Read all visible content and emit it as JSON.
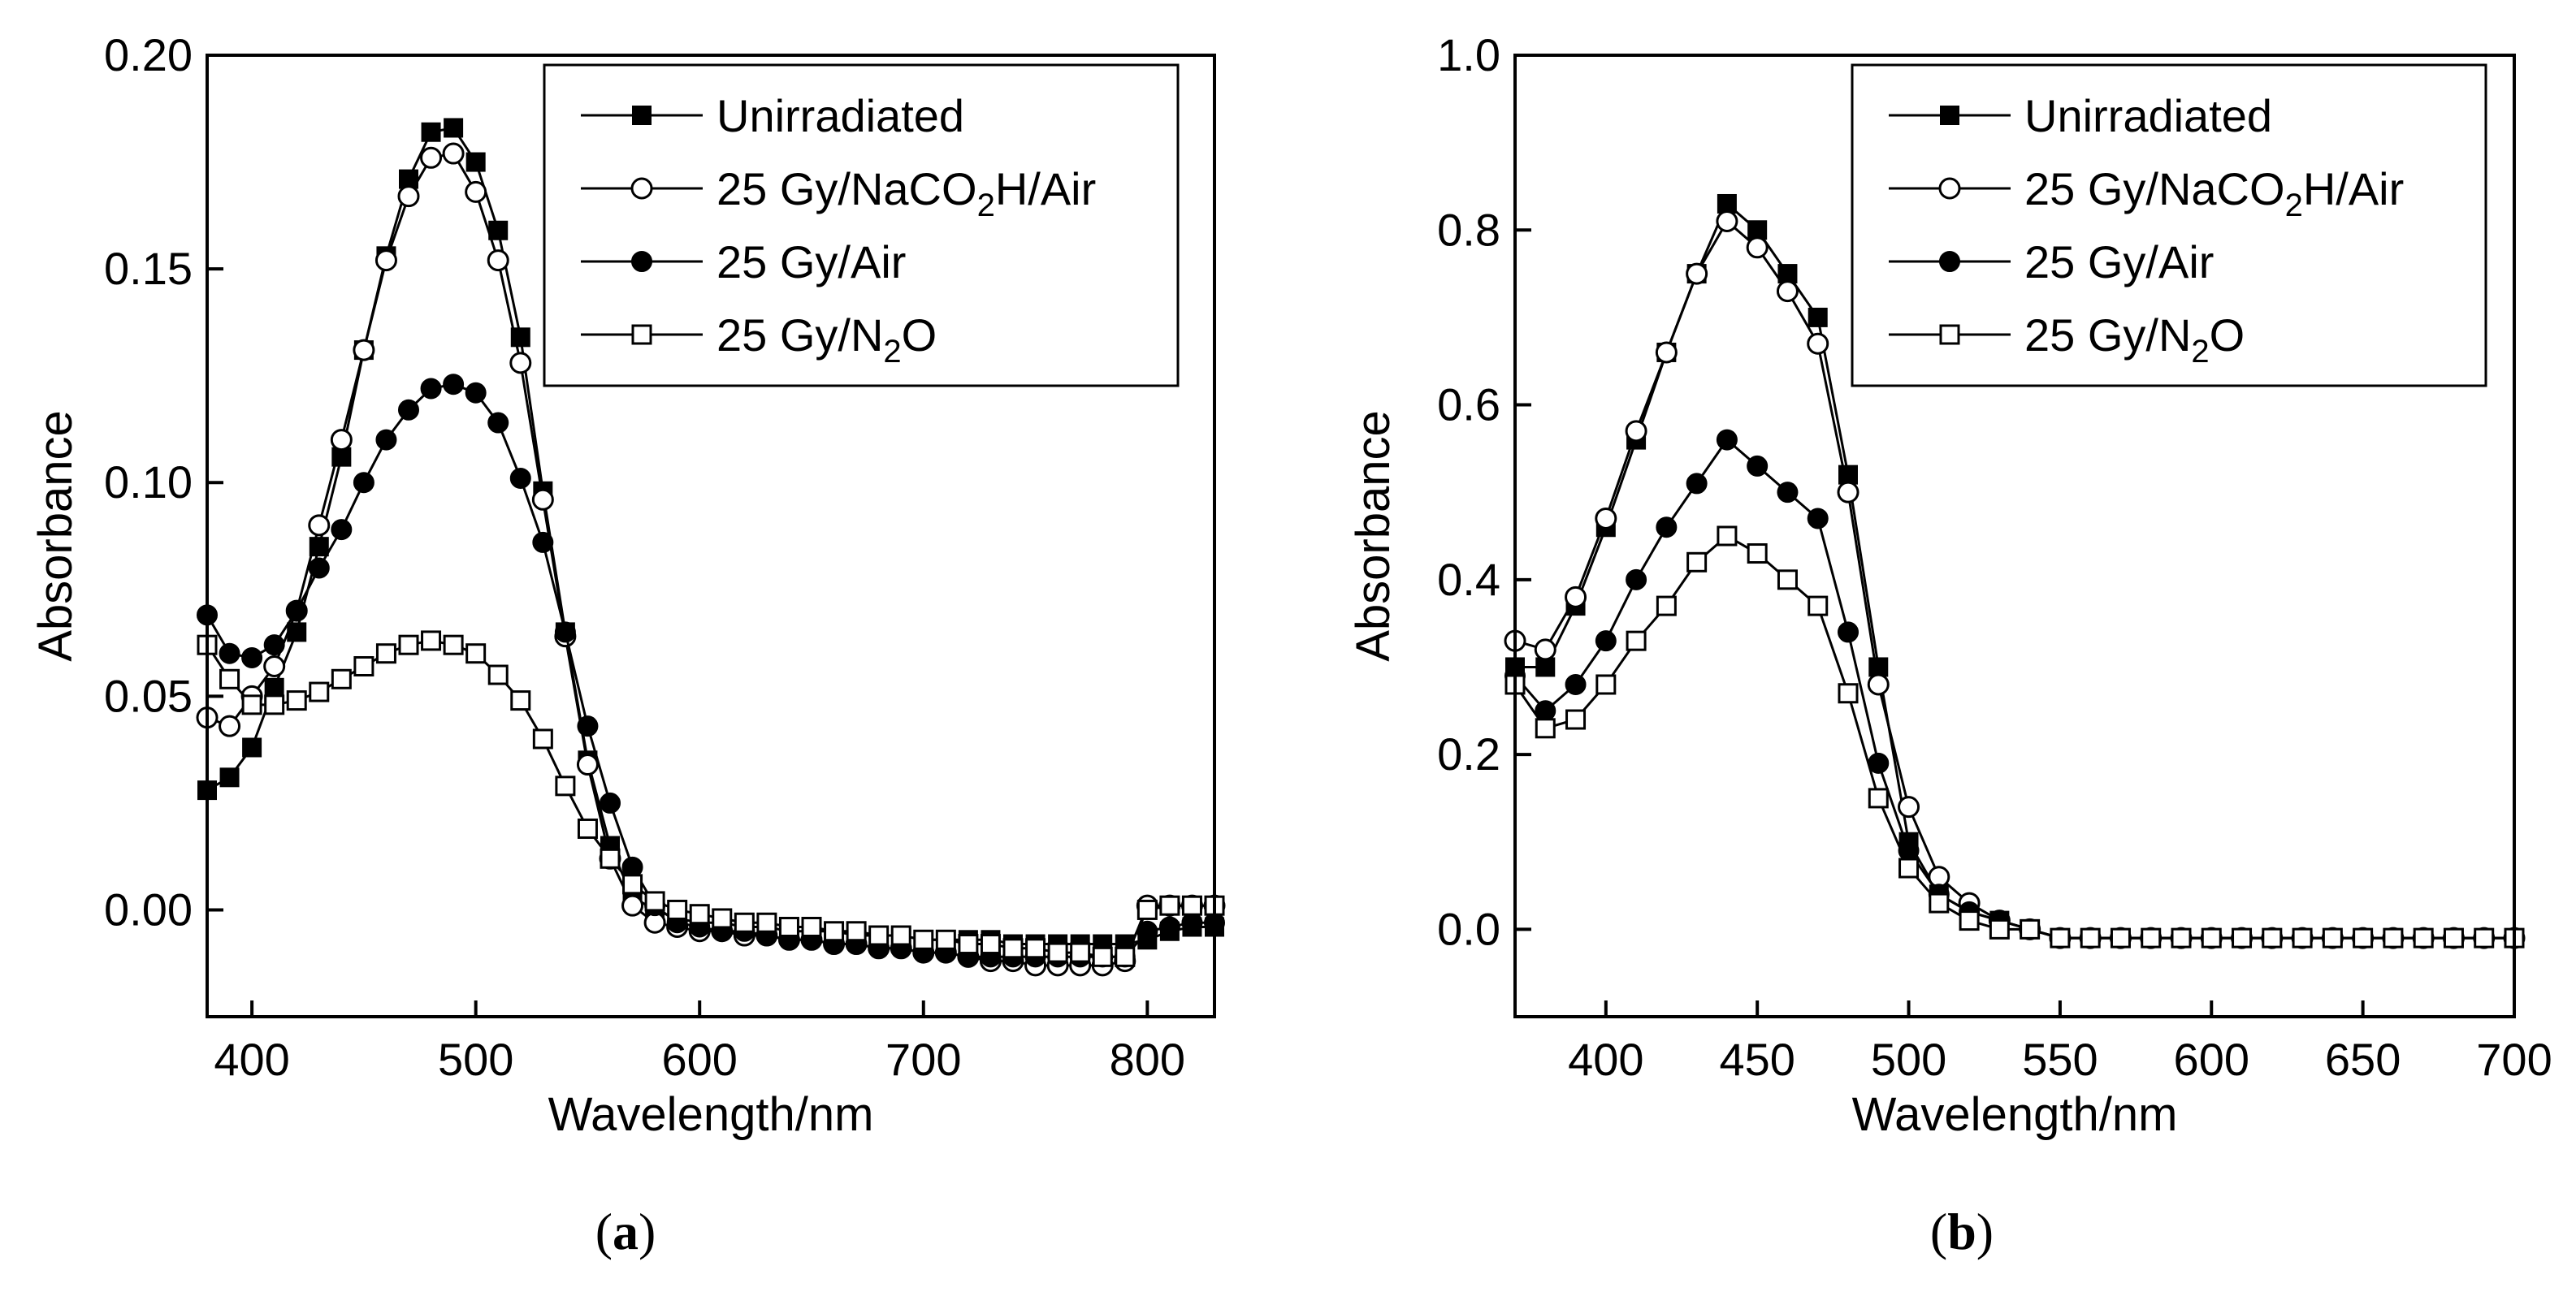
{
  "chart_data": [
    {
      "type": "line",
      "caption": {
        "open": "(",
        "letter": "a",
        "close": ")"
      },
      "xlabel": "Wavelength/nm",
      "ylabel": "Absorbance",
      "xlim": [
        380,
        830
      ],
      "ylim": [
        -0.025,
        0.2
      ],
      "x_ticks": [
        400,
        500,
        600,
        700,
        800
      ],
      "y_ticks": [
        0.0,
        0.05,
        0.1,
        0.15,
        0.2
      ],
      "x_tick_labels": [
        "400",
        "500",
        "600",
        "700",
        "800"
      ],
      "y_tick_labels": [
        "0.00",
        "0.05",
        "0.10",
        "0.15",
        "0.20"
      ],
      "legend": {
        "position": "top-right"
      },
      "x": [
        380,
        390,
        400,
        410,
        420,
        430,
        440,
        450,
        460,
        470,
        480,
        490,
        500,
        510,
        520,
        530,
        540,
        550,
        560,
        570,
        580,
        590,
        600,
        610,
        620,
        630,
        640,
        650,
        660,
        670,
        680,
        690,
        700,
        710,
        720,
        730,
        740,
        750,
        760,
        770,
        780,
        790,
        800,
        810,
        820,
        830
      ],
      "series": [
        {
          "name": "Unirradiated",
          "marker": "filled-square",
          "values": [
            0.028,
            0.031,
            0.038,
            0.052,
            0.065,
            0.085,
            0.106,
            0.131,
            0.153,
            0.171,
            0.182,
            0.183,
            0.175,
            0.159,
            0.134,
            0.098,
            0.065,
            0.035,
            0.015,
            0.003,
            0.0,
            -0.002,
            -0.003,
            -0.003,
            -0.004,
            -0.004,
            -0.005,
            -0.005,
            -0.005,
            -0.006,
            -0.006,
            -0.006,
            -0.007,
            -0.007,
            -0.007,
            -0.007,
            -0.008,
            -0.008,
            -0.008,
            -0.008,
            -0.008,
            -0.008,
            -0.007,
            -0.005,
            -0.004,
            -0.004
          ]
        },
        {
          "name": "25 Gy/NaCO2H/Air",
          "name_parts": [
            "25 Gy/NaCO",
            "2",
            "H/Air"
          ],
          "marker": "open-circle",
          "values": [
            0.045,
            0.043,
            0.05,
            0.057,
            0.07,
            0.09,
            0.11,
            0.131,
            0.152,
            0.167,
            0.176,
            0.177,
            0.168,
            0.152,
            0.128,
            0.096,
            0.064,
            0.034,
            0.012,
            0.001,
            -0.003,
            -0.004,
            -0.005,
            -0.005,
            -0.006,
            -0.006,
            -0.007,
            -0.007,
            -0.008,
            -0.008,
            -0.009,
            -0.009,
            -0.01,
            -0.01,
            -0.011,
            -0.012,
            -0.012,
            -0.013,
            -0.013,
            -0.013,
            -0.013,
            -0.012,
            0.001,
            0.001,
            0.001,
            0.001
          ]
        },
        {
          "name": "25 Gy/Air",
          "marker": "filled-circle",
          "values": [
            0.069,
            0.06,
            0.059,
            0.062,
            0.07,
            0.08,
            0.089,
            0.1,
            0.11,
            0.117,
            0.122,
            0.123,
            0.121,
            0.114,
            0.101,
            0.086,
            0.065,
            0.043,
            0.025,
            0.01,
            0.001,
            -0.003,
            -0.004,
            -0.005,
            -0.005,
            -0.006,
            -0.007,
            -0.007,
            -0.008,
            -0.008,
            -0.009,
            -0.009,
            -0.01,
            -0.01,
            -0.011,
            -0.011,
            -0.011,
            -0.011,
            -0.011,
            -0.011,
            -0.011,
            -0.011,
            -0.005,
            -0.004,
            -0.003,
            -0.003
          ]
        },
        {
          "name": "25 Gy/N2O",
          "name_parts": [
            "25 Gy/N",
            "2",
            "O"
          ],
          "marker": "open-square",
          "values": [
            0.062,
            0.054,
            0.048,
            0.048,
            0.049,
            0.051,
            0.054,
            0.057,
            0.06,
            0.062,
            0.063,
            0.062,
            0.06,
            0.055,
            0.049,
            0.04,
            0.029,
            0.019,
            0.012,
            0.006,
            0.002,
            0.0,
            -0.001,
            -0.002,
            -0.003,
            -0.003,
            -0.004,
            -0.004,
            -0.005,
            -0.005,
            -0.006,
            -0.006,
            -0.007,
            -0.007,
            -0.008,
            -0.008,
            -0.009,
            -0.009,
            -0.01,
            -0.01,
            -0.011,
            -0.011,
            0.0,
            0.001,
            0.001,
            0.001
          ]
        }
      ]
    },
    {
      "type": "line",
      "caption": {
        "open": "(",
        "letter": "b",
        "close": ")"
      },
      "xlabel": "Wavelength/nm",
      "ylabel": "Absorbance",
      "xlim": [
        370,
        700
      ],
      "ylim": [
        -0.1,
        1.0
      ],
      "x_ticks": [
        400,
        450,
        500,
        550,
        600,
        650,
        700
      ],
      "y_ticks": [
        0.0,
        0.2,
        0.4,
        0.6,
        0.8,
        1.0
      ],
      "x_tick_labels": [
        "400",
        "450",
        "500",
        "550",
        "600",
        "650",
        "700"
      ],
      "y_tick_labels": [
        "0.0",
        "0.2",
        "0.4",
        "0.6",
        "0.8",
        "1.0"
      ],
      "legend": {
        "position": "top-right"
      },
      "x": [
        370,
        380,
        390,
        400,
        410,
        420,
        430,
        440,
        450,
        460,
        470,
        480,
        490,
        500,
        510,
        520,
        530,
        540,
        550,
        560,
        570,
        580,
        590,
        600,
        610,
        620,
        630,
        640,
        650,
        660,
        670,
        680,
        690,
        700
      ],
      "series": [
        {
          "name": "Unirradiated",
          "marker": "filled-square",
          "values": [
            0.3,
            0.3,
            0.37,
            0.46,
            0.56,
            0.66,
            0.75,
            0.83,
            0.8,
            0.75,
            0.7,
            0.52,
            0.3,
            0.1,
            0.04,
            0.02,
            0.01,
            0.0,
            -0.01,
            -0.01,
            -0.01,
            -0.01,
            -0.01,
            -0.01,
            -0.01,
            -0.01,
            -0.01,
            -0.01,
            -0.01,
            -0.01,
            -0.01,
            -0.01,
            -0.01,
            -0.01
          ]
        },
        {
          "name": "25 Gy/NaCO2H/Air",
          "name_parts": [
            "25 Gy/NaCO",
            "2",
            "H/Air"
          ],
          "marker": "open-circle",
          "values": [
            0.33,
            0.32,
            0.38,
            0.47,
            0.57,
            0.66,
            0.75,
            0.81,
            0.78,
            0.73,
            0.67,
            0.5,
            0.28,
            0.14,
            0.06,
            0.03,
            0.01,
            0.0,
            -0.01,
            -0.01,
            -0.01,
            -0.01,
            -0.01,
            -0.01,
            -0.01,
            -0.01,
            -0.01,
            -0.01,
            -0.01,
            -0.01,
            -0.01,
            -0.01,
            -0.01,
            -0.01
          ]
        },
        {
          "name": "25 Gy/Air",
          "marker": "filled-circle",
          "values": [
            0.29,
            0.25,
            0.28,
            0.33,
            0.4,
            0.46,
            0.51,
            0.56,
            0.53,
            0.5,
            0.47,
            0.34,
            0.19,
            0.09,
            0.04,
            0.02,
            0.01,
            0.0,
            -0.01,
            -0.01,
            -0.01,
            -0.01,
            -0.01,
            -0.01,
            -0.01,
            -0.01,
            -0.01,
            -0.01,
            -0.01,
            -0.01,
            -0.01,
            -0.01,
            -0.01,
            -0.01
          ]
        },
        {
          "name": "25 Gy/N2O",
          "name_parts": [
            "25 Gy/N",
            "2",
            "O"
          ],
          "marker": "open-square",
          "values": [
            0.28,
            0.23,
            0.24,
            0.28,
            0.33,
            0.37,
            0.42,
            0.45,
            0.43,
            0.4,
            0.37,
            0.27,
            0.15,
            0.07,
            0.03,
            0.01,
            0.0,
            0.0,
            -0.01,
            -0.01,
            -0.01,
            -0.01,
            -0.01,
            -0.01,
            -0.01,
            -0.01,
            -0.01,
            -0.01,
            -0.01,
            -0.01,
            -0.01,
            -0.01,
            -0.01,
            -0.01
          ]
        }
      ]
    }
  ]
}
